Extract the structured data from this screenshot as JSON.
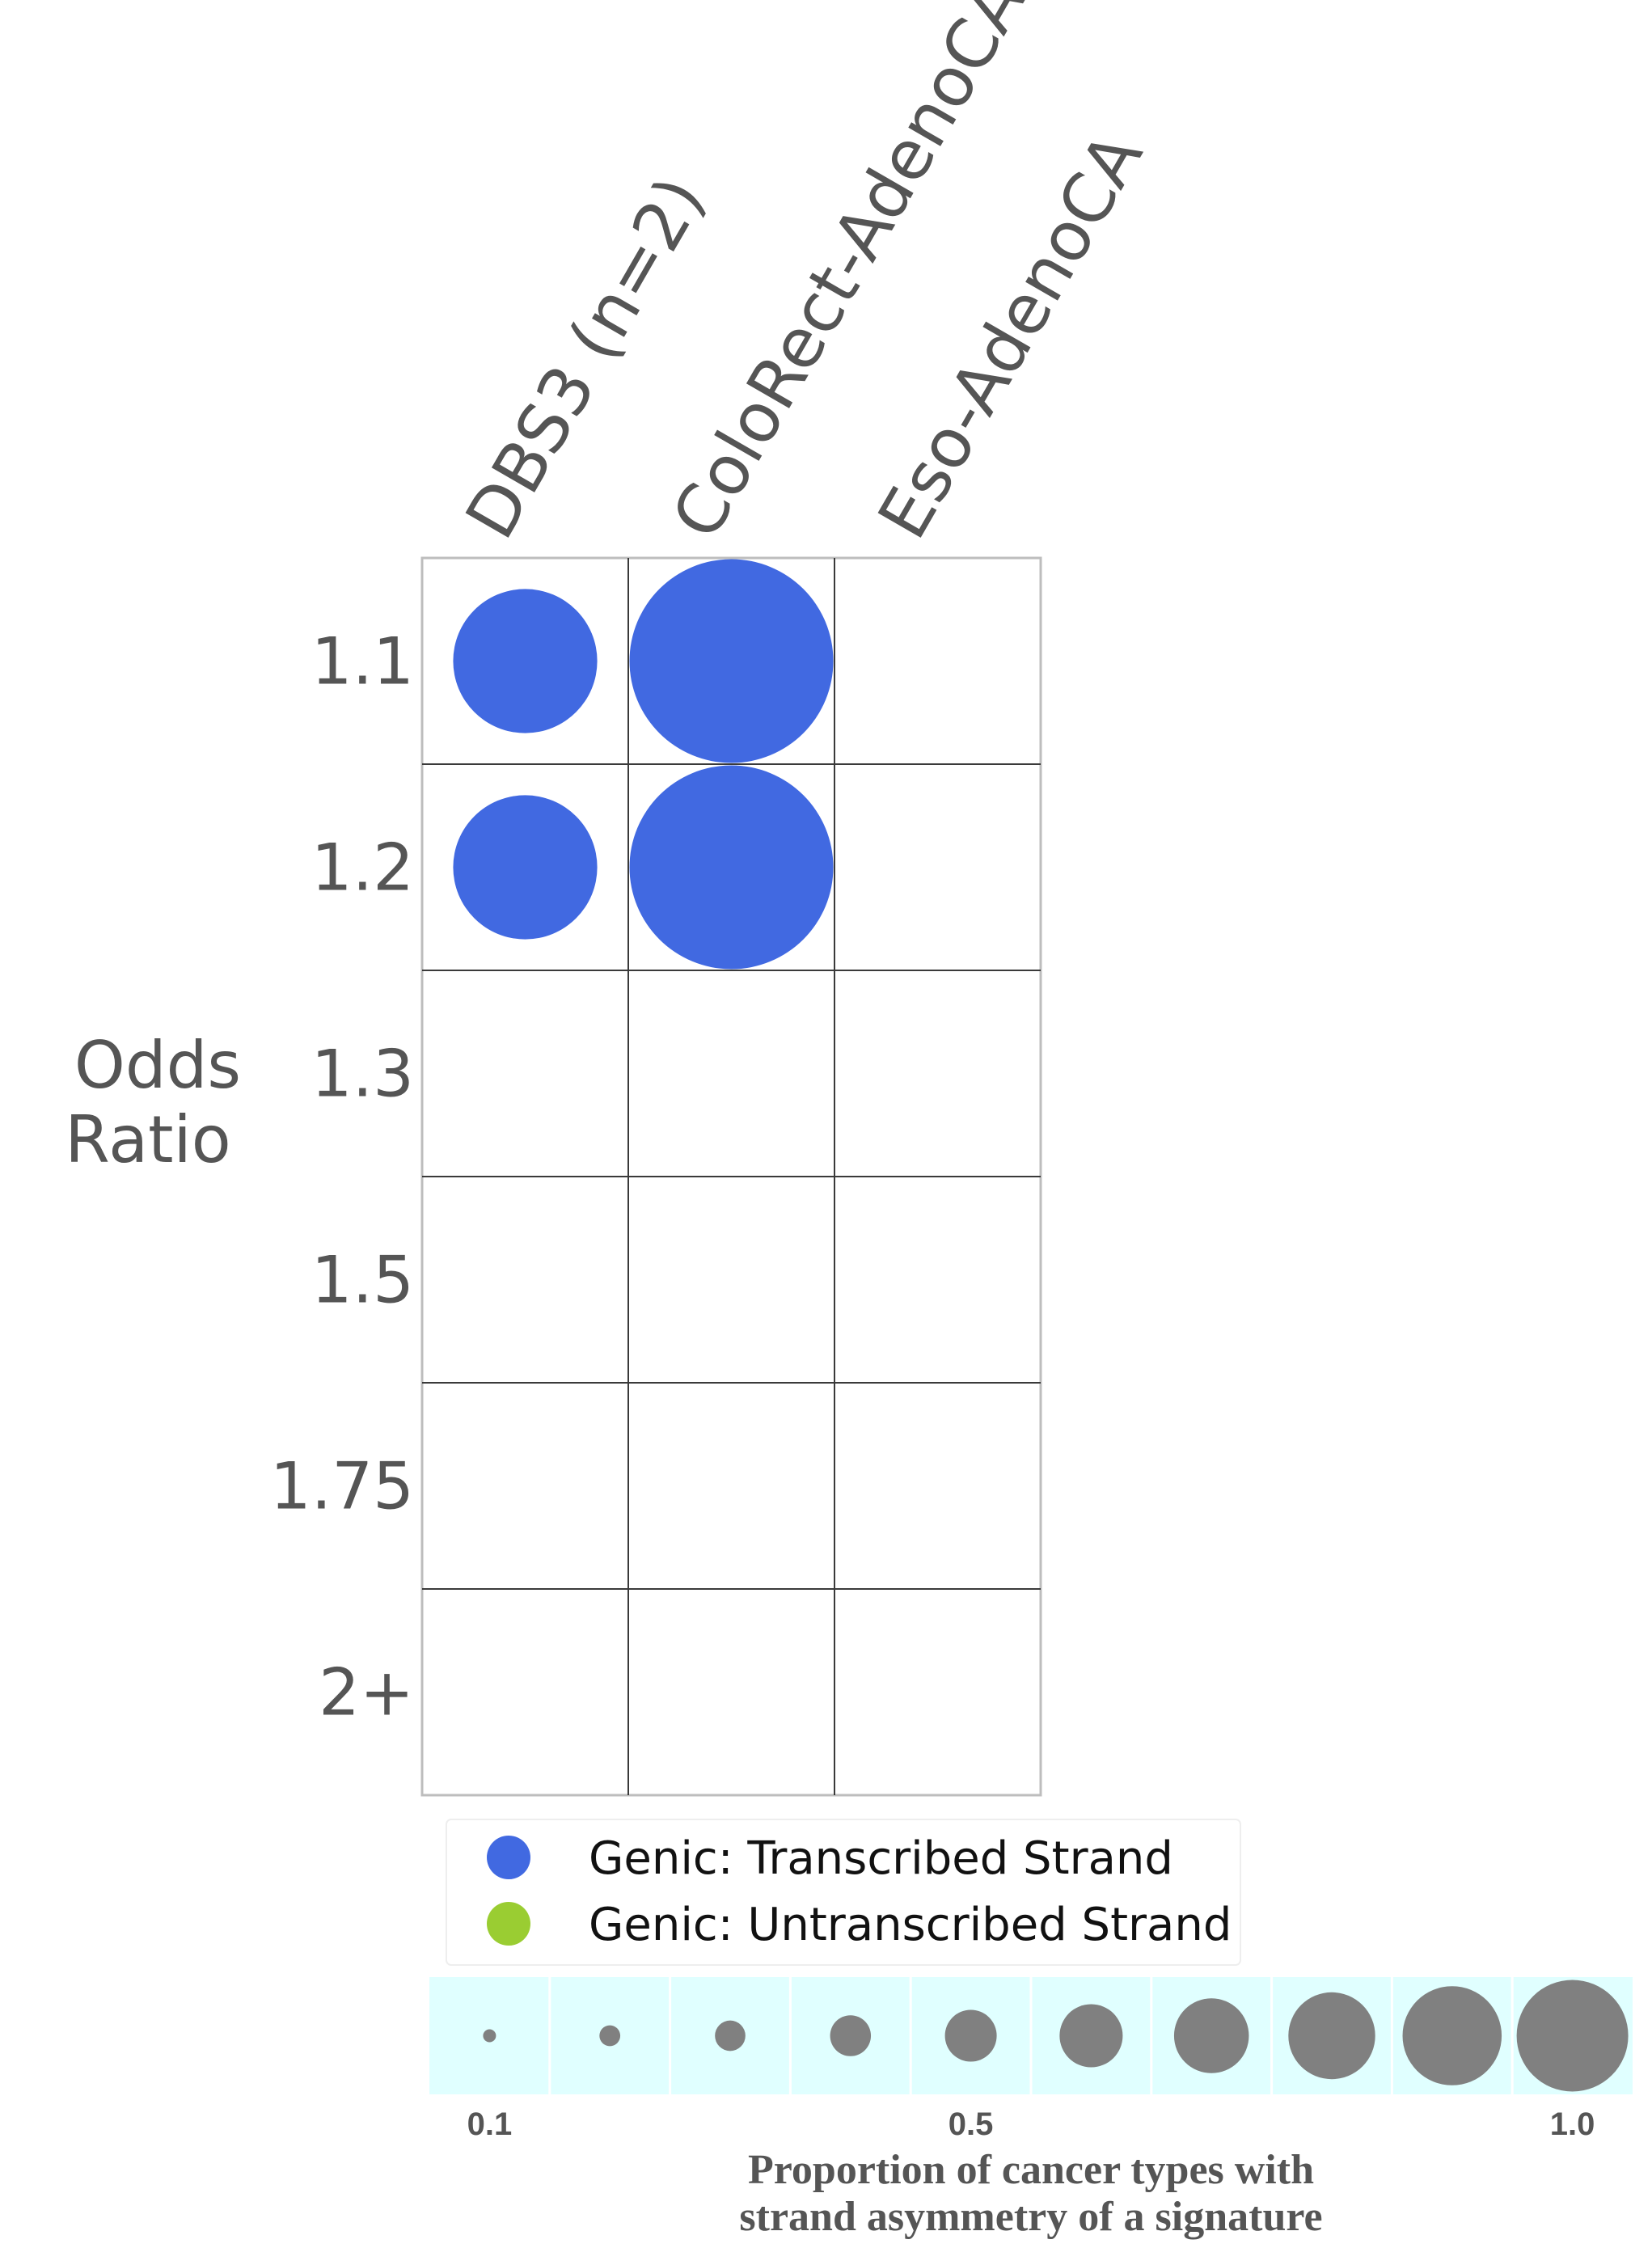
{
  "chart_data": {
    "type": "bubble-grid",
    "columns": [
      "DBS3 (n=2)",
      "ColoRect-AdenoCA",
      "Eso-AdenoCA"
    ],
    "rows": [
      "1.1",
      "1.2",
      "1.3",
      "1.5",
      "1.75",
      "2+"
    ],
    "ylabel_lines": [
      "Odds",
      "Ratio"
    ],
    "points": [
      {
        "column": "DBS3 (n=2)",
        "row": "1.1",
        "series": "Genic: Transcribed Strand",
        "proportion": 0.5
      },
      {
        "column": "DBS3 (n=2)",
        "row": "1.2",
        "series": "Genic: Transcribed Strand",
        "proportion": 0.5
      },
      {
        "column": "ColoRect-AdenoCA",
        "row": "1.1",
        "series": "Genic: Transcribed Strand",
        "proportion": 1.0
      },
      {
        "column": "ColoRect-AdenoCA",
        "row": "1.2",
        "series": "Genic: Transcribed Strand",
        "proportion": 1.0
      }
    ],
    "legend": [
      {
        "label": "Genic: Transcribed Strand",
        "color": "#4169E1"
      },
      {
        "label": "Genic: Untranscribed Strand",
        "color": "#9ACD32"
      }
    ],
    "size_scale": {
      "values": [
        0.1,
        0.2,
        0.3,
        0.4,
        0.5,
        0.6,
        0.7,
        0.8,
        0.9,
        1.0
      ],
      "tick_labels": [
        "0.1",
        "0.5",
        "1.0"
      ],
      "title_lines": [
        "Proportion of cancer types with",
        "strand asymmetry of a signature"
      ],
      "marker_color": "#808080",
      "background_color": "#E0FFFF"
    }
  }
}
